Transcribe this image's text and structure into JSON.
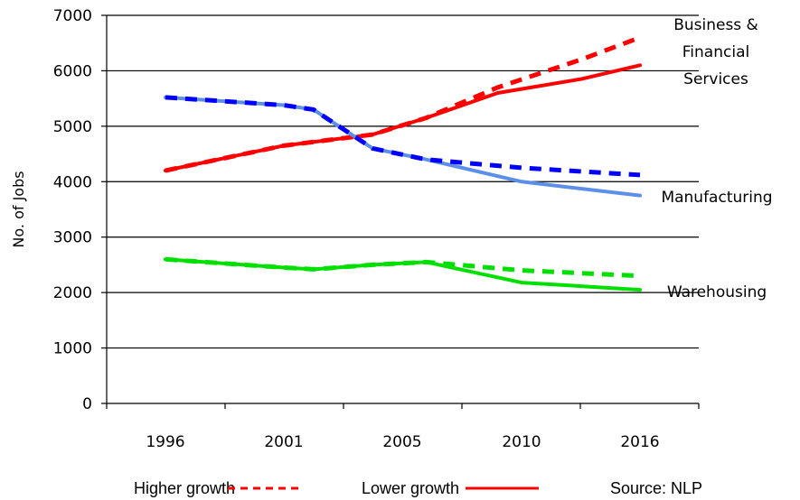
{
  "chart_data": {
    "type": "line",
    "ylabel": "No. of Jobs",
    "ylim": [
      0,
      7000
    ],
    "y_ticks": [
      0,
      1000,
      2000,
      3000,
      4000,
      5000,
      6000,
      7000
    ],
    "x_labels": [
      "1996",
      "2001",
      "2005",
      "2010",
      "2016"
    ],
    "grid": "horizontal",
    "series": [
      {
        "name": "Business & Financial Services",
        "label_lines": [
          "Business &",
          "Financial",
          "Services"
        ],
        "color": "#ff0000",
        "higher_growth": [
          [
            1996,
            4200
          ],
          [
            2001,
            4650
          ],
          [
            2004,
            4850
          ],
          [
            2006,
            5150
          ],
          [
            2009,
            5700
          ],
          [
            2013,
            6200
          ],
          [
            2016,
            6600
          ]
        ],
        "lower_growth": [
          [
            1996,
            4200
          ],
          [
            2001,
            4650
          ],
          [
            2004,
            4850
          ],
          [
            2006,
            5150
          ],
          [
            2009,
            5600
          ],
          [
            2013,
            5850
          ],
          [
            2016,
            6100
          ]
        ]
      },
      {
        "name": "Manufacturing",
        "label_lines": [
          "Manufacturing"
        ],
        "color": "#5b8fe8",
        "dash_color": "#0000ff",
        "higher_growth": [
          [
            1996,
            5520
          ],
          [
            2001,
            5380
          ],
          [
            2002,
            5300
          ],
          [
            2004,
            4600
          ],
          [
            2006,
            4400
          ],
          [
            2010,
            4250
          ],
          [
            2016,
            4120
          ]
        ],
        "lower_growth": [
          [
            1996,
            5520
          ],
          [
            2001,
            5380
          ],
          [
            2002,
            5300
          ],
          [
            2004,
            4600
          ],
          [
            2006,
            4400
          ],
          [
            2010,
            4000
          ],
          [
            2016,
            3750
          ]
        ]
      },
      {
        "name": "Warehousing",
        "label_lines": [
          "Warehousing"
        ],
        "color": "#00e000",
        "higher_growth": [
          [
            1996,
            2600
          ],
          [
            2001,
            2450
          ],
          [
            2002,
            2420
          ],
          [
            2004,
            2500
          ],
          [
            2006,
            2550
          ],
          [
            2010,
            2400
          ],
          [
            2016,
            2300
          ]
        ],
        "lower_growth": [
          [
            1996,
            2600
          ],
          [
            2001,
            2450
          ],
          [
            2002,
            2420
          ],
          [
            2004,
            2500
          ],
          [
            2006,
            2550
          ],
          [
            2010,
            2180
          ],
          [
            2016,
            2050
          ]
        ]
      }
    ],
    "legend": {
      "higher_growth": "Higher growth",
      "lower_growth": "Lower growth",
      "source": "Source: NLP"
    }
  }
}
